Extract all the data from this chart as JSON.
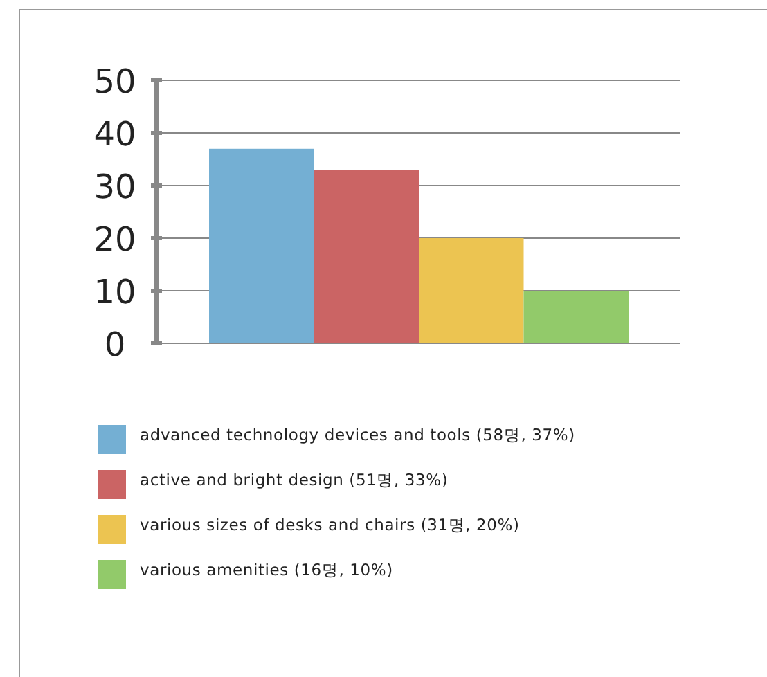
{
  "chart_data": {
    "type": "bar",
    "categories": [
      null
    ],
    "ylim": [
      0,
      50
    ],
    "yticks": [
      0,
      10,
      20,
      30,
      40,
      50
    ],
    "grid": "y",
    "legend": "bottom",
    "series": [
      {
        "name": "advanced technology devices and tools (58명, 37%)",
        "color": "#74afd3",
        "values": [
          37
        ]
      },
      {
        "name": "active and bright design (51명, 33%)",
        "color": "#cb6464",
        "values": [
          33
        ]
      },
      {
        "name": "various sizes of desks and chairs (31명, 20%)",
        "color": "#ecc451",
        "values": [
          20
        ]
      },
      {
        "name": "various amenities (16명, 10%)",
        "color": "#92ca6a",
        "values": [
          10
        ]
      }
    ]
  }
}
